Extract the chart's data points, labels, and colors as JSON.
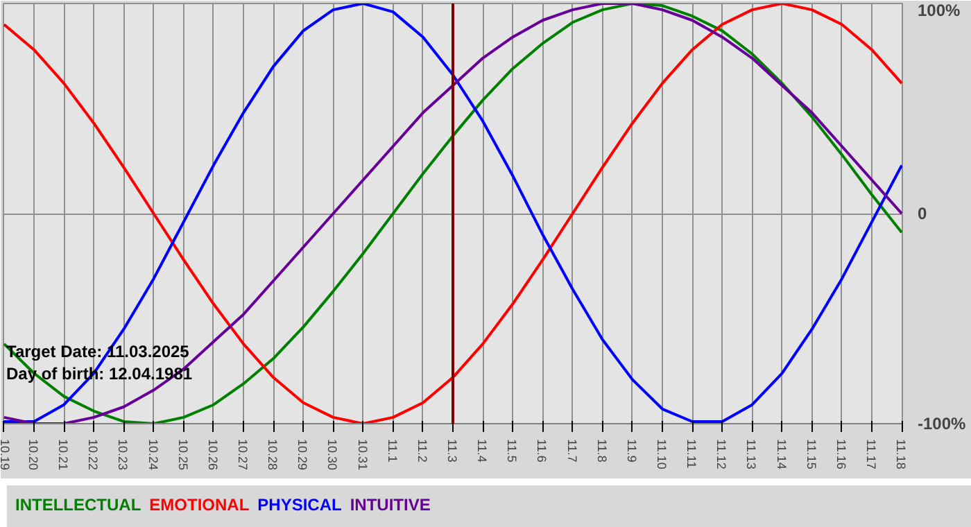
{
  "chart_data": {
    "type": "line",
    "categories": [
      "10.19",
      "10.20",
      "10.21",
      "10.22",
      "10.23",
      "10.24",
      "10.25",
      "10.26",
      "10.27",
      "10.28",
      "10.29",
      "10.30",
      "10.31",
      "11.1",
      "11.2",
      "11.3",
      "11.4",
      "11.5",
      "11.6",
      "11.7",
      "11.8",
      "11.9",
      "11.10",
      "11.11",
      "11.12",
      "11.13",
      "11.14",
      "11.15",
      "11.16",
      "11.17",
      "11.18"
    ],
    "series": [
      {
        "name": "INTELLECTUAL",
        "color": "#008000",
        "values": [
          -62,
          -76,
          -87,
          -94,
          -99,
          -100,
          -97,
          -91,
          -81,
          -69,
          -54,
          -37,
          -19,
          0,
          19,
          37,
          54,
          69,
          81,
          91,
          97,
          100,
          99,
          94,
          87,
          76,
          62,
          46,
          28,
          9,
          -9
        ]
      },
      {
        "name": "EMOTIONAL",
        "color": "#ff0000",
        "values": [
          90,
          78,
          62,
          43,
          22,
          0,
          -22,
          -43,
          -62,
          -78,
          -90,
          -97,
          -100,
          -97,
          -90,
          -78,
          -62,
          -43,
          -22,
          0,
          22,
          43,
          62,
          78,
          90,
          97,
          100,
          97,
          90,
          78,
          62
        ]
      },
      {
        "name": "PHYSICAL",
        "color": "#0000ff",
        "values": [
          -99,
          -99,
          -91,
          -76,
          -55,
          -31,
          -4,
          23,
          48,
          70,
          87,
          97,
          100,
          96,
          84,
          66,
          44,
          18,
          -10,
          -36,
          -60,
          -79,
          -93,
          -99,
          -99,
          -91,
          -76,
          -55,
          -31,
          -4,
          23
        ]
      },
      {
        "name": "INTUITIVE",
        "color": "#660099",
        "values": [
          -97,
          -100,
          -100,
          -97,
          -92,
          -84,
          -74,
          -61,
          -48,
          -32,
          -16,
          0,
          16,
          32,
          48,
          61,
          74,
          84,
          92,
          97,
          100,
          100,
          97,
          92,
          84,
          74,
          61,
          48,
          32,
          16,
          0
        ]
      }
    ],
    "ylim": [
      -100,
      100
    ],
    "yticks": [
      {
        "value": 100,
        "label": "100%"
      },
      0,
      {
        "value": -100,
        "label": "-100%"
      }
    ],
    "ref_lines": [
      {
        "axis": "x",
        "value": "11.3",
        "color": "#800000"
      }
    ],
    "annotations": [
      "Target Date: 11.03.2025",
      "Day of birth: 12.04.1981"
    ],
    "grid": true,
    "legend": "bottom",
    "marker": "none",
    "line_style": "solid"
  }
}
